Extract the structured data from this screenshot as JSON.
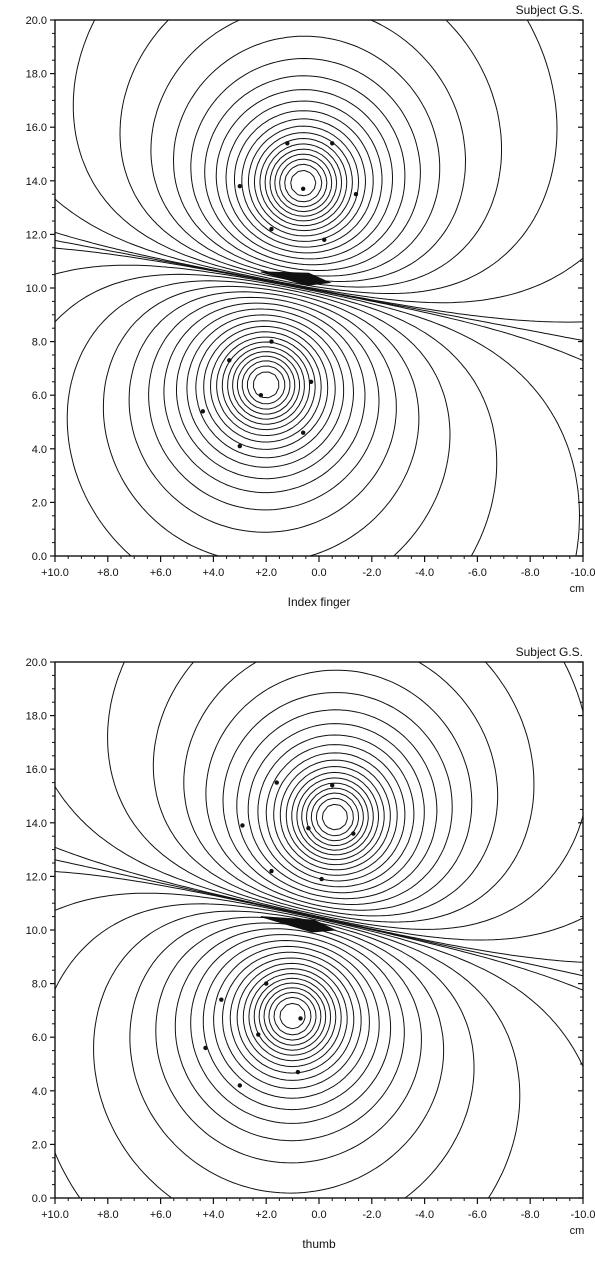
{
  "chart_data": [
    {
      "type": "contour",
      "subject_label": "Subject G.S.",
      "xlabel": "Index finger",
      "x_unit": "cm",
      "xlim": [
        10.0,
        -10.0
      ],
      "ylim": [
        0.0,
        20.0
      ],
      "xticks": [
        10,
        8,
        6,
        4,
        2,
        0,
        -2,
        -4,
        -6,
        -8,
        -10
      ],
      "xtick_labels": [
        "+10.0",
        "+8.0",
        "+6.0",
        "+4.0",
        "+2.0",
        "0.0",
        "-2.0",
        "-4.0",
        "-6.0",
        "-8.0",
        "-10.0"
      ],
      "yticks": [
        0,
        2,
        4,
        6,
        8,
        10,
        12,
        14,
        16,
        18,
        20
      ],
      "ytick_labels": [
        "0.0",
        "2.0",
        "4.0",
        "6.0",
        "8.0",
        "10.0",
        "12.0",
        "14.0",
        "16.0",
        "18.0",
        "20.0"
      ],
      "grid": false,
      "dipole": {
        "x_from": 2.2,
        "y_from": 10.6,
        "x_to": -0.4,
        "y_to": 10.2
      },
      "extrema": [
        {
          "x": 0.6,
          "y": 13.9
        },
        {
          "x": 2.0,
          "y": 6.4
        }
      ],
      "sensor_points": [
        {
          "x": 1.2,
          "y": 15.4
        },
        {
          "x": -0.5,
          "y": 15.4
        },
        {
          "x": 3.0,
          "y": 13.8
        },
        {
          "x": 0.6,
          "y": 13.7
        },
        {
          "x": -1.4,
          "y": 13.5
        },
        {
          "x": 1.8,
          "y": 12.2
        },
        {
          "x": -0.2,
          "y": 11.8
        },
        {
          "x": 1.8,
          "y": 8.0
        },
        {
          "x": 3.4,
          "y": 7.3
        },
        {
          "x": 0.3,
          "y": 6.5
        },
        {
          "x": 2.2,
          "y": 6.0
        },
        {
          "x": 4.4,
          "y": 5.4
        },
        {
          "x": 0.6,
          "y": 4.6
        },
        {
          "x": 3.0,
          "y": 4.1
        }
      ]
    },
    {
      "type": "contour",
      "subject_label": "Subject G.S.",
      "xlabel": "thumb",
      "x_unit": "cm",
      "xlim": [
        10.0,
        -10.0
      ],
      "ylim": [
        0.0,
        20.0
      ],
      "xticks": [
        10,
        8,
        6,
        4,
        2,
        0,
        -2,
        -4,
        -6,
        -8,
        -10
      ],
      "xtick_labels": [
        "+10.0",
        "+8.0",
        "+6.0",
        "+4.0",
        "+2.0",
        "0.0",
        "-2.0",
        "-4.0",
        "-6.0",
        "-8.0",
        "-10.0"
      ],
      "yticks": [
        0,
        2,
        4,
        6,
        8,
        10,
        12,
        14,
        16,
        18,
        20
      ],
      "ytick_labels": [
        "0.0",
        "2.0",
        "4.0",
        "6.0",
        "8.0",
        "10.0",
        "12.0",
        "14.0",
        "16.0",
        "18.0",
        "20.0"
      ],
      "grid": false,
      "dipole": {
        "x_from": 2.2,
        "y_from": 10.5,
        "x_to": -0.6,
        "y_to": 10.0
      },
      "extrema": [
        {
          "x": -0.6,
          "y": 14.2
        },
        {
          "x": 1.0,
          "y": 6.8
        }
      ],
      "sensor_points": [
        {
          "x": -0.5,
          "y": 15.4
        },
        {
          "x": 1.6,
          "y": 15.5
        },
        {
          "x": 2.9,
          "y": 13.9
        },
        {
          "x": 0.4,
          "y": 13.8
        },
        {
          "x": -1.3,
          "y": 13.6
        },
        {
          "x": 1.8,
          "y": 12.2
        },
        {
          "x": -0.1,
          "y": 11.9
        },
        {
          "x": 2.0,
          "y": 8.0
        },
        {
          "x": 3.7,
          "y": 7.4
        },
        {
          "x": 0.7,
          "y": 6.7
        },
        {
          "x": 2.3,
          "y": 6.1
        },
        {
          "x": 4.3,
          "y": 5.6
        },
        {
          "x": 0.8,
          "y": 4.7
        },
        {
          "x": 3.0,
          "y": 4.2
        }
      ]
    }
  ]
}
